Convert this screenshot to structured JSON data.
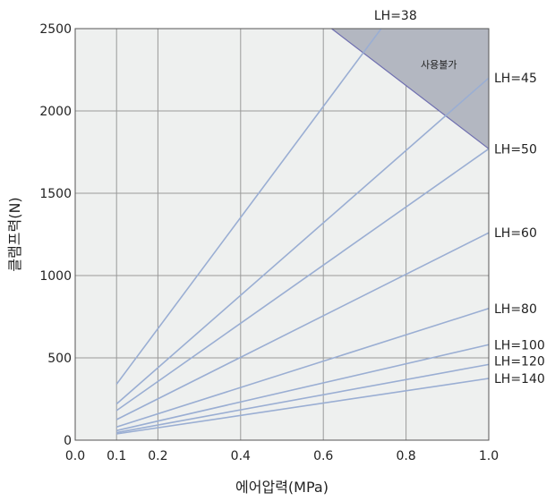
{
  "chart_data": {
    "type": "line",
    "xlabel": "에어압력(MPa)",
    "ylabel": "클램프력(N)",
    "xlim": [
      0.0,
      1.0
    ],
    "ylim": [
      0,
      2500
    ],
    "x_ticks": [
      0.0,
      0.1,
      0.2,
      0.4,
      0.6,
      0.8,
      1.0
    ],
    "x_tick_labels": [
      "0.0",
      "0.1",
      "0.2",
      "0.4",
      "0.6",
      "0.8",
      "1.0"
    ],
    "y_ticks": [
      0,
      500,
      1000,
      1500,
      2000,
      2500
    ],
    "y_tick_labels": [
      "0",
      "500",
      "1000",
      "1500",
      "2000",
      "2500"
    ],
    "grid": true,
    "line_color": "#9aaed3",
    "region_color": "#b3b7c1",
    "plot_background": "#eef0ef",
    "unusable_region": {
      "label": "사용불가",
      "boundary": [
        {
          "x": 0.62,
          "y": 2500
        },
        {
          "x": 1.0,
          "y": 1770
        }
      ]
    },
    "series": [
      {
        "name": "LH=38",
        "x": [
          0.1,
          0.74
        ],
        "y": [
          340,
          2500
        ]
      },
      {
        "name": "LH=45",
        "x": [
          0.1,
          1.0
        ],
        "y": [
          220,
          2200
        ]
      },
      {
        "name": "LH=50",
        "x": [
          0.1,
          1.0
        ],
        "y": [
          180,
          1770
        ]
      },
      {
        "name": "LH=60",
        "x": [
          0.1,
          1.0
        ],
        "y": [
          125,
          1260
        ]
      },
      {
        "name": "LH=80",
        "x": [
          0.1,
          1.0
        ],
        "y": [
          80,
          800
        ]
      },
      {
        "name": "LH=100",
        "x": [
          0.1,
          1.0
        ],
        "y": [
          58,
          580
        ]
      },
      {
        "name": "LH=120",
        "x": [
          0.1,
          1.0
        ],
        "y": [
          46,
          460
        ]
      },
      {
        "name": "LH=140",
        "x": [
          0.1,
          1.0
        ],
        "y": [
          38,
          375
        ]
      }
    ]
  }
}
